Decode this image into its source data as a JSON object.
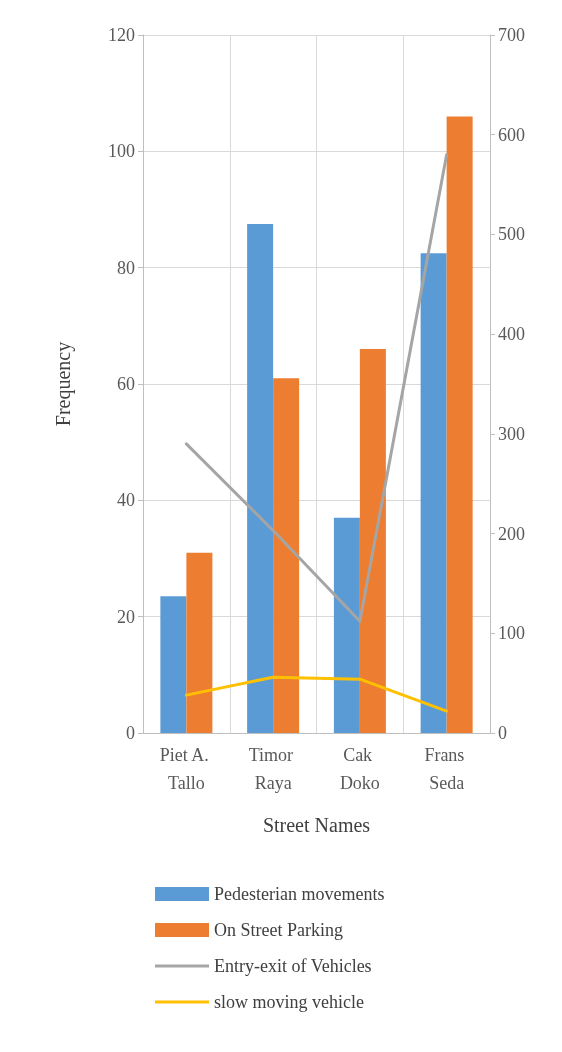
{
  "chart_data": {
    "type": "bar",
    "xlabel": "Street Names",
    "ylabel": "Frequency",
    "categories": [
      "Piet A. Tallo",
      "Timor Raya",
      "Cak Doko",
      "Frans Seda"
    ],
    "series": [
      {
        "name": "Pedesterian movements",
        "color": "#5b9bd5",
        "values": [
          23.5,
          87.5,
          37,
          82.5
        ]
      },
      {
        "name": "On Street Parking",
        "color": "#ed7d31",
        "values": [
          31,
          61,
          66,
          106
        ]
      },
      {
        "name": "Entry-exit of Vehicles",
        "type": "line",
        "axis": "y2",
        "color": "#a5a5a5",
        "values": [
          290,
          203,
          112,
          580
        ]
      },
      {
        "name": "slow moving vehicle",
        "type": "line",
        "axis": "y2",
        "color": "#ffc000",
        "values": [
          38,
          56,
          54,
          22
        ]
      }
    ],
    "ylim": [
      0,
      120
    ],
    "yticks": [
      0,
      20,
      40,
      60,
      80,
      100,
      120
    ],
    "y2lim": [
      0,
      700
    ],
    "y2ticks": [
      0,
      100,
      200,
      300,
      400,
      500,
      600,
      700
    ],
    "grid": true,
    "legend": "bottom",
    "marker": "none",
    "line_style": "solid"
  }
}
